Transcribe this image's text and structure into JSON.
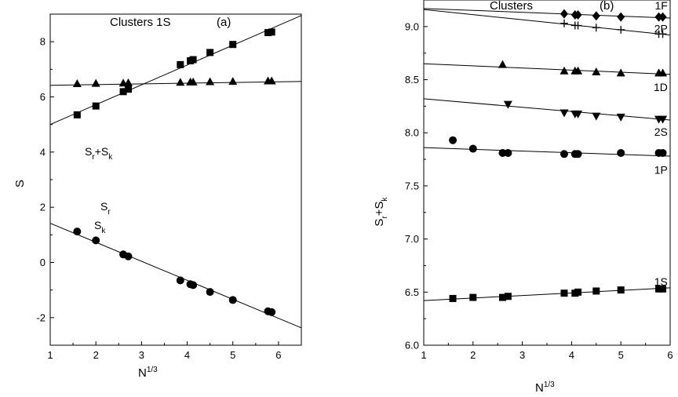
{
  "chart_data": [
    {
      "type": "scatter",
      "title": "Clusters 1S",
      "panel_label": "(a)",
      "xlabel": "N",
      "xlabel_sup": "1/3",
      "ylabel": "S",
      "xlim": [
        1,
        6.5
      ],
      "ylim": [
        -3,
        9
      ],
      "xticks": [
        1,
        2,
        3,
        4,
        5,
        6
      ],
      "yticks": [
        -2,
        0,
        2,
        4,
        6,
        8
      ],
      "grid": false,
      "series": [
        {
          "name": "S_r + S_k",
          "label_parts": {
            "a": "S",
            "a_sub": "r",
            "b": "+S",
            "b_sub": "k"
          },
          "marker": "triangle",
          "points": [
            [
              1.59,
              6.47
            ],
            [
              2.0,
              6.48
            ],
            [
              2.6,
              6.49
            ],
            [
              2.71,
              6.5
            ],
            [
              3.85,
              6.52
            ],
            [
              4.07,
              6.53
            ],
            [
              4.13,
              6.53
            ],
            [
              4.5,
              6.54
            ],
            [
              5.0,
              6.55
            ],
            [
              5.77,
              6.57
            ],
            [
              5.85,
              6.57
            ]
          ],
          "fit": [
            [
              1,
              6.42
            ],
            [
              6.5,
              6.56
            ]
          ]
        },
        {
          "name": "S_r",
          "label_parts": {
            "a": "S",
            "a_sub": "r"
          },
          "marker": "square",
          "points": [
            [
              1.59,
              5.35
            ],
            [
              2.0,
              5.67
            ],
            [
              2.6,
              6.19
            ],
            [
              2.71,
              6.28
            ],
            [
              3.85,
              7.17
            ],
            [
              4.07,
              7.31
            ],
            [
              4.13,
              7.35
            ],
            [
              4.5,
              7.61
            ],
            [
              5.0,
              7.9
            ],
            [
              5.77,
              8.33
            ],
            [
              5.85,
              8.35
            ]
          ],
          "fit": [
            [
              1,
              5.0
            ],
            [
              6.5,
              8.95
            ]
          ]
        },
        {
          "name": "S_k",
          "label_parts": {
            "a": "S",
            "a_sub": "k"
          },
          "marker": "circle",
          "points": [
            [
              1.59,
              1.12
            ],
            [
              2.0,
              0.8
            ],
            [
              2.6,
              0.29
            ],
            [
              2.71,
              0.22
            ],
            [
              3.85,
              -0.65
            ],
            [
              4.07,
              -0.79
            ],
            [
              4.13,
              -0.82
            ],
            [
              4.5,
              -1.07
            ],
            [
              5.0,
              -1.36
            ],
            [
              5.77,
              -1.77
            ],
            [
              5.85,
              -1.8
            ]
          ],
          "fit": [
            [
              1,
              1.42
            ],
            [
              6.5,
              -2.37
            ]
          ]
        }
      ]
    },
    {
      "type": "scatter",
      "title": "Clusters",
      "panel_label": "(b)",
      "xlabel": "N",
      "xlabel_sup": "1/3",
      "ylabel": "S",
      "ylabel_parts": {
        "a": "S",
        "a_sub": "r",
        "b": "+S",
        "b_sub": "k"
      },
      "xlim": [
        1,
        6
      ],
      "ylim": [
        6.0,
        9.25
      ],
      "xticks": [
        1,
        2,
        3,
        4,
        5,
        6
      ],
      "yticks": [
        6.0,
        6.5,
        7.0,
        7.5,
        8.0,
        8.5,
        9.0
      ],
      "grid": false,
      "series": [
        {
          "name": "1F",
          "marker": "diamond",
          "label_at": [
            5.95,
            9.2
          ],
          "points": [
            [
              3.85,
              9.12
            ],
            [
              4.07,
              9.11
            ],
            [
              4.13,
              9.11
            ],
            [
              4.5,
              9.1
            ],
            [
              5.0,
              9.09
            ],
            [
              5.77,
              9.09
            ],
            [
              5.85,
              9.09
            ]
          ],
          "fit": [
            [
              1,
              9.17
            ],
            [
              6,
              9.08
            ]
          ]
        },
        {
          "name": "2P",
          "marker": "plus",
          "label_at": [
            5.95,
            8.98
          ],
          "points": [
            [
              3.85,
              9.03
            ],
            [
              4.07,
              9.01
            ],
            [
              4.13,
              9.01
            ],
            [
              4.5,
              8.99
            ],
            [
              5.0,
              8.97
            ],
            [
              5.77,
              8.93
            ],
            [
              5.85,
              8.93
            ]
          ],
          "fit": [
            [
              1,
              9.16
            ],
            [
              6,
              8.92
            ]
          ]
        },
        {
          "name": "1D",
          "marker": "triangle",
          "label_at": [
            5.95,
            8.43
          ],
          "points": [
            [
              2.6,
              8.64
            ],
            [
              3.85,
              8.58
            ],
            [
              4.07,
              8.58
            ],
            [
              4.13,
              8.58
            ],
            [
              4.5,
              8.57
            ],
            [
              5.0,
              8.56
            ],
            [
              5.77,
              8.56
            ],
            [
              5.85,
              8.56
            ]
          ],
          "fit": [
            [
              1,
              8.65
            ],
            [
              6,
              8.55
            ]
          ]
        },
        {
          "name": "2S",
          "marker": "triangle-down",
          "label_at": [
            5.95,
            8.01
          ],
          "points": [
            [
              2.71,
              8.27
            ],
            [
              3.85,
              8.19
            ],
            [
              4.07,
              8.18
            ],
            [
              4.13,
              8.18
            ],
            [
              4.5,
              8.16
            ],
            [
              5.0,
              8.15
            ],
            [
              5.77,
              8.13
            ],
            [
              5.85,
              8.13
            ]
          ],
          "fit": [
            [
              1,
              8.32
            ],
            [
              6,
              8.12
            ]
          ]
        },
        {
          "name": "1P",
          "marker": "circle",
          "label_at": [
            5.95,
            7.65
          ],
          "points": [
            [
              1.59,
              7.93
            ],
            [
              2.0,
              7.85
            ],
            [
              2.6,
              7.81
            ],
            [
              2.71,
              7.81
            ],
            [
              3.85,
              7.8
            ],
            [
              4.07,
              7.8
            ],
            [
              4.13,
              7.8
            ],
            [
              5.0,
              7.81
            ],
            [
              5.77,
              7.81
            ],
            [
              5.85,
              7.81
            ]
          ],
          "fit": [
            [
              1,
              7.86
            ],
            [
              6,
              7.78
            ]
          ]
        },
        {
          "name": "1S",
          "marker": "square",
          "label_at": [
            5.95,
            6.6
          ],
          "points": [
            [
              1.59,
              6.44
            ],
            [
              2.0,
              6.45
            ],
            [
              2.6,
              6.45
            ],
            [
              2.71,
              6.46
            ],
            [
              3.85,
              6.49
            ],
            [
              4.07,
              6.49
            ],
            [
              4.13,
              6.5
            ],
            [
              4.5,
              6.51
            ],
            [
              5.0,
              6.52
            ],
            [
              5.77,
              6.53
            ],
            [
              5.85,
              6.53
            ]
          ],
          "fit": [
            [
              1,
              6.42
            ],
            [
              6,
              6.54
            ]
          ]
        }
      ]
    }
  ]
}
